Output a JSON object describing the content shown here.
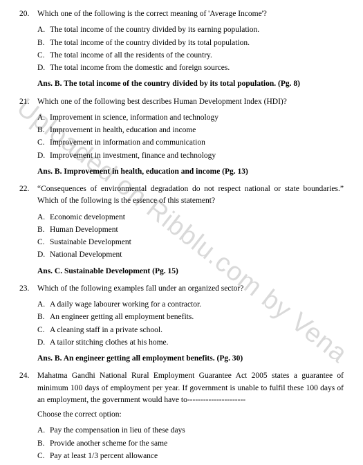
{
  "watermark": "Uploaded on Ribblu.com by Vena",
  "questions": [
    {
      "num": "20.",
      "text": "Which one of the following is the correct meaning of 'Average Income'?",
      "options": [
        {
          "l": "A.",
          "t": "The total income of the country divided by its earning population."
        },
        {
          "l": "B.",
          "t": "The total income of the country divided by its total population."
        },
        {
          "l": "C.",
          "t": "The total income of all the residents of the country."
        },
        {
          "l": "D.",
          "t": "The total income from the domestic and foreign sources."
        }
      ],
      "answer": "Ans. B. The total income of the country divided by its total population. (Pg. 8)"
    },
    {
      "num": "21.",
      "text": "Which one of the following best describes Human Development Index (HDI)?",
      "options": [
        {
          "l": "A.",
          "t": "Improvement in science, information and technology"
        },
        {
          "l": "B.",
          "t": "Improvement in health, education and income"
        },
        {
          "l": "C.",
          "t": "Improvement in information and communication"
        },
        {
          "l": "D.",
          "t": "Improvement in investment, finance and technology"
        }
      ],
      "answer": "Ans. B. Improvement in health, education and income (Pg. 13)"
    },
    {
      "num": "22.",
      "text": "“Consequences of environmental degradation do not respect national or state boundaries.” Which of the following is the essence of this statement?",
      "justify": true,
      "options": [
        {
          "l": "A.",
          "t": "Economic development"
        },
        {
          "l": "B.",
          "t": "Human Development"
        },
        {
          "l": "C.",
          "t": "Sustainable Development"
        },
        {
          "l": "D.",
          "t": "National Development"
        }
      ],
      "answer": "Ans. C. Sustainable Development (Pg. 15)"
    },
    {
      "num": "23.",
      "text": "Which of the following examples fall under an organized sector?",
      "options": [
        {
          "l": "A.",
          "t": "A daily wage labourer working for a contractor."
        },
        {
          "l": "B.",
          "t": "An engineer getting all employment benefits."
        },
        {
          "l": "C.",
          "t": "A cleaning staff in a private school."
        },
        {
          "l": "D.",
          "t": "A tailor stitching clothes at his home."
        }
      ],
      "answer": "Ans. B. An engineer getting all employment benefits. (Pg. 30)"
    },
    {
      "num": "24.",
      "text": "Mahatma Gandhi National Rural Employment Guarantee Act 2005 states a guarantee of minimum 100 days of employment per year. If government is unable to fulfil these 100 days of an employment, the government would have to----------------------",
      "justify": true,
      "subprompt": "Choose the correct option:",
      "options": [
        {
          "l": "A.",
          "t": "Pay the compensation in lieu of these days"
        },
        {
          "l": "B.",
          "t": "Provide another scheme for the same"
        },
        {
          "l": "C.",
          "t": "Pay at least 1/3  percent allowance"
        }
      ]
    }
  ]
}
